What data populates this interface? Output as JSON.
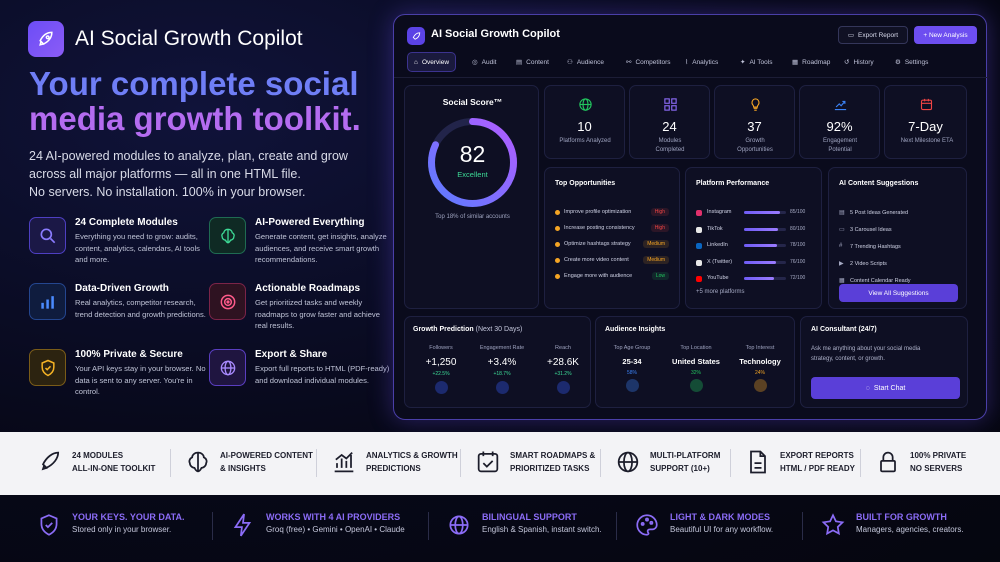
{
  "brand": "AI Social Growth Copilot",
  "headline": {
    "line1": "Your complete social",
    "line2": "media growth toolkit."
  },
  "subtext": {
    "l1": "24 AI-powered modules to analyze, plan, create and grow",
    "l2": "across all major platforms — all in one HTML file.",
    "l3": "No servers. No installation. 100% in your browser."
  },
  "features": [
    {
      "title": "24 Complete Modules",
      "desc": "Everything you need to grow: audits, content, analytics, calendars, AI tools and more.",
      "icon": "search-icon"
    },
    {
      "title": "AI-Powered Everything",
      "desc": "Generate content, get insights, analyze audiences, and receive smart growth recommendations.",
      "icon": "brain-icon"
    },
    {
      "title": "Data-Driven Growth",
      "desc": "Real analytics, competitor research, trend detection and growth predictions.",
      "icon": "bar-chart-icon"
    },
    {
      "title": "Actionable Roadmaps",
      "desc": "Get prioritized tasks and weekly roadmaps to grow faster and achieve real results.",
      "icon": "target-icon"
    },
    {
      "title": "100% Private & Secure",
      "desc": "Your API keys stay in your browser. No data is sent to any server. You're in control.",
      "icon": "shield-icon"
    },
    {
      "title": "Export & Share",
      "desc": "Export full reports to HTML (PDF-ready) and download individual modules.",
      "icon": "globe-icon"
    }
  ],
  "dashboard": {
    "title": "AI Social Growth Copilot",
    "export_label": "Export Report",
    "new_label": "+ New Analysis",
    "tabs": [
      "Overview",
      "Audit",
      "Content",
      "Audience",
      "Competitors",
      "Analytics",
      "AI Tools",
      "Roadmap",
      "History",
      "Settings"
    ],
    "score": {
      "title": "Social Score™",
      "value": "82",
      "label": "Excellent",
      "note": "Top 18% of similar accounts",
      "fraction": 0.82
    },
    "stats": [
      {
        "value": "10",
        "label": "Platforms Analyzed",
        "icon": "globe-icon",
        "color": "#22c55e"
      },
      {
        "value": "24",
        "label": "Modules Completed",
        "icon": "grid-icon",
        "color": "#8b6cf6"
      },
      {
        "value": "37",
        "label": "Growth Opportunities",
        "icon": "bulb-icon",
        "color": "#f5a524"
      },
      {
        "value": "92%",
        "label": "Engagement Potential",
        "icon": "trend-icon",
        "color": "#3b82f6"
      },
      {
        "value": "7-Day",
        "label": "Next Milestone ETA",
        "icon": "calendar-icon",
        "color": "#ef4444"
      }
    ],
    "opportunities": {
      "title": "Top Opportunities",
      "items": [
        {
          "text": "Improve profile optimization",
          "tag": "High",
          "color": "#ef4444"
        },
        {
          "text": "Increase posting consistency",
          "tag": "High",
          "color": "#ef4444"
        },
        {
          "text": "Optimize hashtags strategy",
          "tag": "Medium",
          "color": "#f5a524"
        },
        {
          "text": "Create more video content",
          "tag": "Medium",
          "color": "#f5a524"
        },
        {
          "text": "Engage more with audience",
          "tag": "Low",
          "color": "#22c55e"
        }
      ]
    },
    "performance": {
      "title": "Platform Performance",
      "more": "+5 more platforms",
      "items": [
        {
          "name": "Instagram",
          "score": "85/100",
          "fraction": 0.85,
          "color": "#e1306c"
        },
        {
          "name": "TikTok",
          "score": "80/100",
          "fraction": 0.8,
          "color": "#e8e8e8"
        },
        {
          "name": "LinkedIn",
          "score": "78/100",
          "fraction": 0.78,
          "color": "#0a66c2"
        },
        {
          "name": "X (Twitter)",
          "score": "76/100",
          "fraction": 0.76,
          "color": "#e8e8e8"
        },
        {
          "name": "YouTube",
          "score": "72/100",
          "fraction": 0.72,
          "color": "#ff0000"
        }
      ]
    },
    "suggestions": {
      "title": "AI Content Suggestions",
      "button": "View All Suggestions",
      "items": [
        "5 Post Ideas Generated",
        "3 Carousel Ideas",
        "7 Trending Hashtags",
        "2 Video Scripts",
        "Content Calendar Ready"
      ]
    },
    "growth": {
      "title": "Growth Prediction",
      "title_note": "(Next 30 Days)",
      "items": [
        {
          "label": "Followers",
          "value": "+1,250",
          "change": "+22.5%"
        },
        {
          "label": "Engagement Rate",
          "value": "+3.4%",
          "change": "+18.7%"
        },
        {
          "label": "Reach",
          "value": "+28.6K",
          "change": "+31.2%"
        }
      ]
    },
    "audience": {
      "title": "Audience Insights",
      "items": [
        {
          "label": "Top Age Group",
          "value": "25-34",
          "pct": "58%",
          "color": "#3b82f6"
        },
        {
          "label": "Top Location",
          "value": "United States",
          "pct": "32%",
          "color": "#22c55e"
        },
        {
          "label": "Top Interest",
          "value": "Technology",
          "pct": "24%",
          "color": "#f5a524"
        }
      ]
    },
    "consultant": {
      "title": "AI Consultant (24/7)",
      "text": "Ask me anything about your social media strategy, content, or growth.",
      "button": "Start Chat"
    }
  },
  "strip": [
    {
      "l1": "24 MODULES",
      "l2": "ALL-IN-ONE TOOLKIT",
      "icon": "rocket-icon"
    },
    {
      "l1": "AI-POWERED CONTENT",
      "l2": "& INSIGHTS",
      "icon": "brain-icon"
    },
    {
      "l1": "ANALYTICS & GROWTH",
      "l2": "PREDICTIONS",
      "icon": "chart-icon"
    },
    {
      "l1": "SMART ROADMAPS &",
      "l2": "PRIORITIZED TASKS",
      "icon": "checklist-icon"
    },
    {
      "l1": "MULTI-PLATFORM",
      "l2": "SUPPORT (10+)",
      "icon": "globe-icon"
    },
    {
      "l1": "EXPORT REPORTS",
      "l2": "HTML / PDF READY",
      "icon": "document-icon"
    },
    {
      "l1": "100% PRIVATE",
      "l2": "NO SERVERS",
      "icon": "lock-icon"
    }
  ],
  "bottom": [
    {
      "t1": "YOUR KEYS. YOUR DATA.",
      "t2": "Stored only in your browser.",
      "icon": "shield-icon"
    },
    {
      "t1": "WORKS WITH 4 AI PROVIDERS",
      "t2": "Groq (free) • Gemini • OpenAI • Claude",
      "icon": "bolt-icon"
    },
    {
      "t1": "BILINGUAL SUPPORT",
      "t2": "English & Spanish, instant switch.",
      "icon": "globe-icon"
    },
    {
      "t1": "LIGHT & DARK MODES",
      "t2": "Beautiful UI for any workflow.",
      "icon": "palette-icon"
    },
    {
      "t1": "BUILT FOR GROWTH",
      "t2": "Managers, agencies, creators.",
      "icon": "star-icon"
    }
  ]
}
